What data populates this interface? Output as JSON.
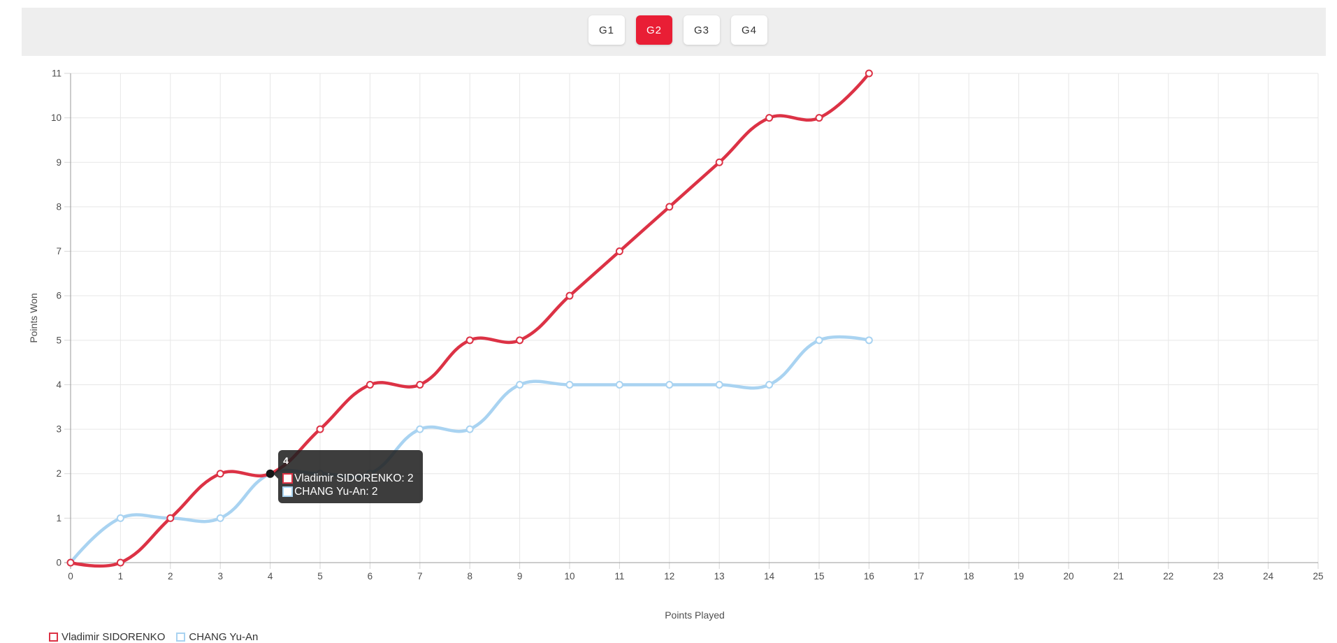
{
  "tabs": {
    "active_color": "#e91e35",
    "items": [
      {
        "label": "G1",
        "active": false
      },
      {
        "label": "G2",
        "active": true
      },
      {
        "label": "G3",
        "active": false
      },
      {
        "label": "G4",
        "active": false
      }
    ]
  },
  "chart_data": {
    "type": "line",
    "title": "",
    "xlabel": "Points Played",
    "ylabel": "Points Won",
    "xlim": [
      0,
      25
    ],
    "ylim": [
      0,
      11
    ],
    "x_tick_step": 1,
    "y_tick_step": 1,
    "grid": true,
    "legend_position": "none",
    "line_tension": 0.4,
    "x": [
      0,
      1,
      2,
      3,
      4,
      5,
      6,
      7,
      8,
      9,
      10,
      11,
      12,
      13,
      14,
      15,
      16
    ],
    "series": [
      {
        "name": "Vladimir SIDORENKO",
        "color": "#dc3245",
        "values": [
          0,
          0,
          1,
          2,
          2,
          3,
          4,
          4,
          5,
          5,
          6,
          7,
          8,
          9,
          10,
          10,
          11
        ]
      },
      {
        "name": "CHANG Yu-An",
        "color": "#a9d3f1",
        "values": [
          0,
          1,
          1,
          1,
          2,
          2,
          2,
          3,
          3,
          4,
          4,
          4,
          4,
          4,
          4,
          5,
          5
        ]
      }
    ]
  },
  "tooltip": {
    "title": "4",
    "x": 4,
    "lines": [
      {
        "label": "Vladimir SIDORENKO: 2",
        "value": 2,
        "series": 0
      },
      {
        "label": "CHANG Yu-An: 2",
        "value": 2,
        "series": 1
      }
    ]
  },
  "footer_legend": {
    "clipped": true,
    "items": [
      {
        "label": "Vladimir SIDORENKO",
        "color": "#dc3245"
      },
      {
        "label": "CHANG Yu-An",
        "color": "#a9d3f1"
      }
    ]
  }
}
